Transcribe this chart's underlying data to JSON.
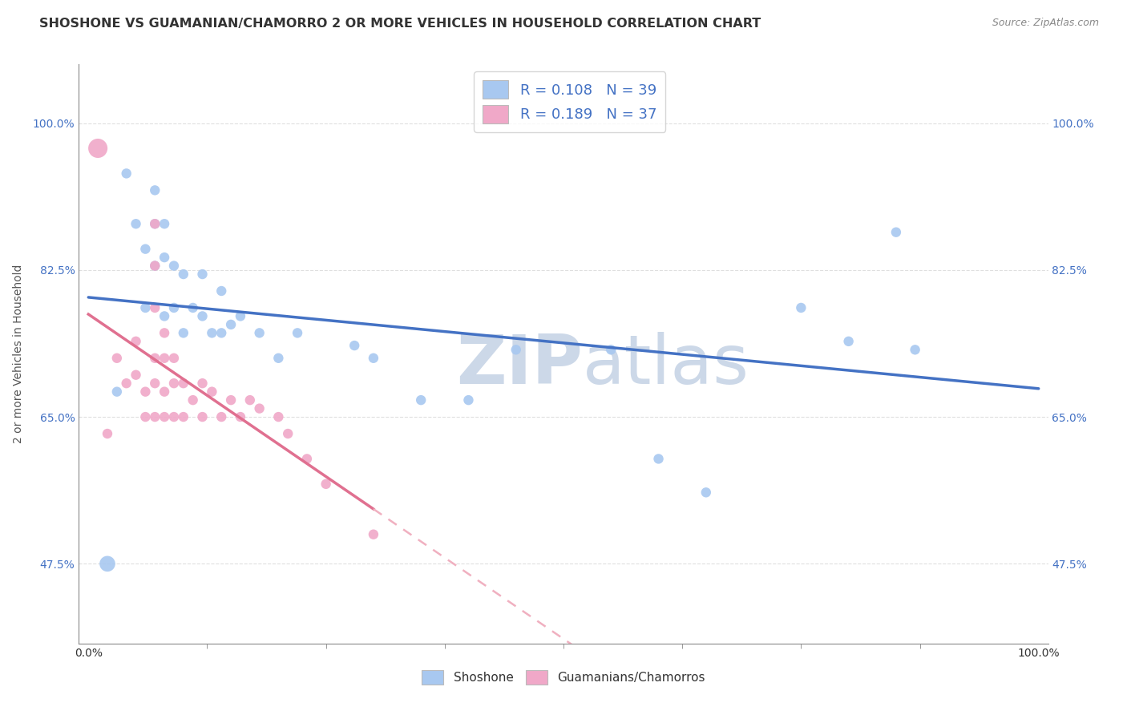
{
  "title": "SHOSHONE VS GUAMANIAN/CHAMORRO 2 OR MORE VEHICLES IN HOUSEHOLD CORRELATION CHART",
  "source": "Source: ZipAtlas.com",
  "ylabel": "2 or more Vehicles in Household",
  "r_shoshone": 0.108,
  "n_shoshone": 39,
  "r_guamanian": 0.189,
  "n_guamanian": 37,
  "shoshone_color": "#a8c8f0",
  "guamanian_color": "#f0a8c8",
  "shoshone_line_color": "#4472c4",
  "guamanian_line_color": "#e07090",
  "guamanian_dashed_color": "#f0b0c0",
  "watermark_color": "#ccd8e8",
  "background_color": "#ffffff",
  "grid_color": "#d8d8d8",
  "ytick_vals": [
    0.475,
    0.65,
    0.825,
    1.0
  ],
  "ytick_labels": [
    "47.5%",
    "65.0%",
    "82.5%",
    "100.0%"
  ],
  "shoshone_x": [
    0.02,
    0.04,
    0.05,
    0.06,
    0.06,
    0.07,
    0.07,
    0.07,
    0.08,
    0.08,
    0.08,
    0.09,
    0.09,
    0.1,
    0.1,
    0.11,
    0.12,
    0.12,
    0.13,
    0.14,
    0.14,
    0.15,
    0.16,
    0.18,
    0.2,
    0.22,
    0.3,
    0.35,
    0.4,
    0.45,
    0.55,
    0.6,
    0.65,
    0.75,
    0.8,
    0.85,
    0.87,
    0.03,
    0.28
  ],
  "shoshone_y": [
    0.475,
    0.94,
    0.88,
    0.85,
    0.78,
    0.92,
    0.88,
    0.83,
    0.88,
    0.84,
    0.77,
    0.83,
    0.78,
    0.82,
    0.75,
    0.78,
    0.82,
    0.77,
    0.75,
    0.8,
    0.75,
    0.76,
    0.77,
    0.75,
    0.72,
    0.75,
    0.72,
    0.67,
    0.67,
    0.73,
    0.73,
    0.6,
    0.56,
    0.78,
    0.74,
    0.87,
    0.73,
    0.68,
    0.735
  ],
  "shoshone_sizes": [
    200,
    80,
    80,
    80,
    80,
    80,
    80,
    80,
    80,
    80,
    80,
    80,
    80,
    80,
    80,
    80,
    80,
    80,
    80,
    80,
    80,
    80,
    80,
    80,
    80,
    80,
    80,
    80,
    80,
    80,
    80,
    80,
    80,
    80,
    80,
    80,
    80,
    80,
    80
  ],
  "guamanian_x": [
    0.01,
    0.02,
    0.03,
    0.04,
    0.05,
    0.05,
    0.06,
    0.06,
    0.07,
    0.07,
    0.07,
    0.08,
    0.08,
    0.08,
    0.09,
    0.09,
    0.1,
    0.1,
    0.11,
    0.12,
    0.12,
    0.13,
    0.14,
    0.15,
    0.16,
    0.17,
    0.18,
    0.2,
    0.21,
    0.23,
    0.25,
    0.07,
    0.07,
    0.07,
    0.08,
    0.09,
    0.3
  ],
  "guamanian_y": [
    0.97,
    0.63,
    0.72,
    0.69,
    0.74,
    0.7,
    0.68,
    0.65,
    0.72,
    0.69,
    0.65,
    0.72,
    0.68,
    0.65,
    0.69,
    0.65,
    0.69,
    0.65,
    0.67,
    0.69,
    0.65,
    0.68,
    0.65,
    0.67,
    0.65,
    0.67,
    0.66,
    0.65,
    0.63,
    0.6,
    0.57,
    0.88,
    0.83,
    0.78,
    0.75,
    0.72,
    0.51
  ],
  "guamanian_sizes": [
    300,
    80,
    80,
    80,
    80,
    80,
    80,
    80,
    80,
    80,
    80,
    80,
    80,
    80,
    80,
    80,
    80,
    80,
    80,
    80,
    80,
    80,
    80,
    80,
    80,
    80,
    80,
    80,
    80,
    80,
    80,
    80,
    80,
    80,
    80,
    80,
    80
  ],
  "title_fontsize": 11.5,
  "source_fontsize": 9,
  "legend_fontsize": 13,
  "axis_label_fontsize": 10,
  "tick_fontsize": 10
}
